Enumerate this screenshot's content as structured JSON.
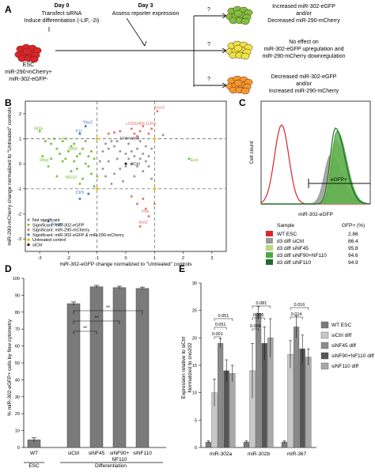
{
  "panel_labels": {
    "a": "A",
    "b": "B",
    "c": "C",
    "d": "D",
    "e": "E"
  },
  "panel_a": {
    "day0_title": "Day 0",
    "day0_line1": "Transfect siRNA",
    "day0_line2": "Induce differentiation (-LIF, -2i)",
    "day3_title": "Day 3",
    "day3_line1": "Assess reporter expression",
    "esc_line1": "ESC",
    "esc_line2": "miR-290-mCherry+",
    "esc_line3": "miR-302-eGFP-",
    "q": "?",
    "out1_line1": "Increased miR-302-eGFP",
    "out1_line2": "and/or",
    "out1_line3": "Decreased miR-290-mCherry",
    "out2_line1": "No effect on",
    "out2_line2": "miR-302-eGFP upregulation and",
    "out2_line3": "miR-290-mCherry downregulation",
    "out3_line1": "Decreased miR-302-eGFP",
    "out3_line2": "and/or",
    "out3_line3": "Increased miR-290-mCherry",
    "colors": {
      "esc": "#d9262b",
      "green": "#7cc242",
      "yellow": "#e8e64a",
      "orange": "#f29a2e"
    }
  },
  "chart_b": {
    "type": "scatter",
    "xlabel": "miR-302-eGFP change normalized to \"Untreated\" controls",
    "ylabel": "miR-290-mCherry change normalized to \"Untreated\" controls",
    "xticks": [
      "-3",
      "-2",
      "-1",
      "0",
      "1",
      "2",
      "3"
    ],
    "yticks": [
      "2",
      "1",
      "0",
      "-1",
      "-2",
      "-3"
    ],
    "xlim": [
      -3.5,
      3.5
    ],
    "ylim": [
      -3.5,
      2.5
    ],
    "dashed_x": [
      -1,
      1
    ],
    "dashed_y": [
      1,
      -1
    ],
    "legend": [
      {
        "label": "Not significant",
        "color": "#9a9a9a"
      },
      {
        "label": "Significant: miR-302-eGFP",
        "color": "#7cc242"
      },
      {
        "label": "Significant: miR-290-mCherry",
        "color": "#e07a70"
      },
      {
        "label": "Significant: miR-302-eGFP & miR-290-mCherry",
        "color": "#4a78c6"
      },
      {
        "label": "Untreated control",
        "color": "#e8c21a"
      },
      {
        "label": "siCtrl",
        "color": "#111111"
      }
    ],
    "point_labels": {
      "sox3": "Sox3",
      "ybx2": "Ybx2",
      "c030": "c030046E11Rik",
      "nf45": "Nf45",
      "fzr": "Fzr",
      "kit": "Kit",
      "nf90": "Nf90",
      "rbpj": "Rbpj",
      "nf110": "Nf110",
      "eed": "Eed",
      "untreated": "Untreated",
      "sictrl": "siCtrl",
      "ctr9": "Ctr9",
      "snupn": "Snupn",
      "pbx": "Pbx",
      "rnf2": "Rnf2"
    },
    "green_points": [
      [
        -3.0,
        1.3
      ],
      [
        -2.8,
        0.9
      ],
      [
        -2.6,
        0.8
      ],
      [
        -2.5,
        1.0
      ],
      [
        -2.4,
        0.6
      ],
      [
        -2.3,
        0.4
      ],
      [
        -2.2,
        0.9
      ],
      [
        -2.1,
        0.2
      ],
      [
        -2.0,
        0.5
      ],
      [
        -1.9,
        0.7
      ],
      [
        -1.8,
        0.1
      ],
      [
        -1.7,
        -0.2
      ],
      [
        -1.6,
        0.4
      ],
      [
        -1.5,
        0.6
      ],
      [
        -1.4,
        0.0
      ],
      [
        -1.3,
        0.3
      ],
      [
        -1.2,
        -0.4
      ],
      [
        -1.1,
        0.2
      ],
      [
        -2.7,
        -0.1
      ],
      [
        -2.4,
        -0.5
      ],
      [
        -2.2,
        0.1
      ],
      [
        -1.9,
        -0.3
      ],
      [
        -1.7,
        0.3
      ],
      [
        -1.5,
        -0.6
      ],
      [
        -1.3,
        -0.1
      ],
      [
        -1.2,
        0.5
      ],
      [
        -1.0,
        -0.5
      ],
      [
        -2.9,
        0.3
      ],
      [
        -2.6,
        0.2
      ],
      [
        -1.8,
        0.8
      ],
      [
        -1.6,
        -0.8
      ],
      [
        -1.4,
        0.9
      ],
      [
        -1.1,
        -0.9
      ],
      [
        2.2,
        0.2
      ]
    ],
    "red_points": [
      [
        1.1,
        2.1
      ],
      [
        0.6,
        1.5
      ],
      [
        0.5,
        1.3
      ],
      [
        0.8,
        1.2
      ],
      [
        0.2,
        1.4
      ],
      [
        0.4,
        1.1
      ],
      [
        -0.2,
        1.3
      ],
      [
        0.9,
        1.4
      ],
      [
        0.3,
        1.2
      ],
      [
        -0.4,
        1.25
      ],
      [
        1.3,
        1.15
      ],
      [
        -0.6,
        1.2
      ],
      [
        0.6,
        -1.4
      ],
      [
        0.4,
        -1.6
      ],
      [
        0.8,
        -2.1
      ],
      [
        0.7,
        -1.8
      ],
      [
        1.0,
        -1.6
      ],
      [
        0.2,
        -1.3
      ],
      [
        0.5,
        -2.5
      ]
    ],
    "blue_points": [
      [
        -1.4,
        1.5
      ],
      [
        -1.6,
        1.2
      ],
      [
        -1.3,
        -1.2
      ],
      [
        -1.6,
        -1.4
      ],
      [
        -2.7,
        -2.3
      ]
    ],
    "gray_points": [
      [
        -0.8,
        0.5
      ],
      [
        -0.6,
        0.1
      ],
      [
        -0.4,
        0.7
      ],
      [
        -0.2,
        -0.2
      ],
      [
        0.0,
        0.4
      ],
      [
        0.2,
        0.0
      ],
      [
        0.4,
        0.6
      ],
      [
        0.6,
        -0.3
      ],
      [
        0.8,
        0.3
      ],
      [
        -0.7,
        -0.5
      ],
      [
        -0.5,
        0.9
      ],
      [
        -0.3,
        0.2
      ],
      [
        -0.1,
        -0.7
      ],
      [
        0.1,
        0.8
      ],
      [
        0.3,
        -0.5
      ],
      [
        0.5,
        0.2
      ],
      [
        0.7,
        0.7
      ],
      [
        0.9,
        -0.6
      ],
      [
        -0.9,
        0.1
      ],
      [
        -0.6,
        0.6
      ],
      [
        -0.2,
        0.5
      ],
      [
        0.2,
        0.5
      ],
      [
        0.6,
        0.4
      ],
      [
        -0.4,
        -0.4
      ],
      [
        0.0,
        -0.1
      ],
      [
        0.4,
        -0.1
      ],
      [
        0.8,
        -0.1
      ],
      [
        -0.8,
        -0.2
      ],
      [
        0.1,
        0.2
      ],
      [
        -0.3,
        0.9
      ],
      [
        0.5,
        0.9
      ],
      [
        -0.5,
        -0.8
      ],
      [
        0.3,
        0.3
      ],
      [
        0.7,
        0.1
      ],
      [
        -0.7,
        0.8
      ],
      [
        0.9,
        0.6
      ]
    ],
    "yellow_points": [
      [
        -1.0,
        -1.0
      ],
      [
        1.0,
        1.0
      ],
      [
        -1.0,
        1.0
      ],
      [
        1.0,
        -1.0
      ]
    ],
    "black_points": [
      [
        0.0,
        0.0
      ]
    ]
  },
  "chart_c": {
    "type": "histogram",
    "ylabel": "Cell count",
    "xlabel": "miR-302-eGFP",
    "gate_label": "eGFP+",
    "table_header_sample": "Sample",
    "table_header_value": "GFP+ (%)",
    "rows": [
      {
        "sample": "WT ESC",
        "value": "2.86",
        "color": "#d9262b"
      },
      {
        "sample": "d3 diff siCtrl",
        "value": "86.4",
        "color": "#999999"
      },
      {
        "sample": "d3 diff siNF45",
        "value": "95.8",
        "color": "#b6d77e"
      },
      {
        "sample": "d3 diff siNF90+NF110",
        "value": "94.6",
        "color": "#4ea844"
      },
      {
        "sample": "d3 diff siNF110",
        "value": "94.9",
        "color": "#1e6b30"
      }
    ]
  },
  "chart_d": {
    "type": "bar",
    "ylabel": "% miR-302-eGFP+ cells by flow cytometry",
    "ylim": [
      0,
      100
    ],
    "yticks": [
      "0",
      "10",
      "20",
      "30",
      "40",
      "50",
      "60",
      "70",
      "80",
      "90",
      "100"
    ],
    "categories": [
      "WT",
      "siCtrl",
      "siNF45",
      "siNF90+",
      "siNF110"
    ],
    "category_line2": [
      "",
      "",
      "",
      "NF110",
      ""
    ],
    "values": [
      4.5,
      85,
      95,
      94.5,
      94
    ],
    "errors": [
      1.2,
      1.0,
      0.8,
      0.8,
      0.8
    ],
    "group_esc": "ESC",
    "group_diff": "Differentiation",
    "sig": [
      "**",
      "**",
      "**",
      "**"
    ]
  },
  "chart_e": {
    "type": "bar",
    "ylabel_line1": "Expression relative to siCtrl",
    "ylabel_line2": "Normalized to sno202",
    "ylim": [
      0,
      30
    ],
    "yticks": [
      "0",
      "5",
      "10",
      "15",
      "20",
      "25",
      "30"
    ],
    "categories": [
      "miR-302a",
      "miR-302b",
      "miR-367"
    ],
    "series": [
      {
        "name": "WT ESC",
        "color": "#7a7a7a",
        "values": [
          1,
          1,
          1
        ],
        "errors": [
          0.2,
          0.2,
          0.2
        ]
      },
      {
        "name": "siCtrl diff",
        "color": "#c8c8c8",
        "values": [
          10,
          14,
          17
        ],
        "errors": [
          2.5,
          5.0,
          2.5
        ]
      },
      {
        "name": "siNF45 diff",
        "color": "#8a8a8a",
        "values": [
          19,
          24.5,
          22
        ],
        "errors": [
          0.8,
          1.2,
          2.0
        ]
      },
      {
        "name": "siNF90+NF110 diff",
        "color": "#555555",
        "values": [
          14,
          19,
          18
        ],
        "errors": [
          2.0,
          3.0,
          2.5
        ]
      },
      {
        "name": "siNF110 diff",
        "color": "#a8a8a8",
        "values": [
          13.5,
          20,
          16.5
        ],
        "errors": [
          1.5,
          3.5,
          1.5
        ]
      }
    ],
    "sig_values": [
      "0.001",
      "0.051",
      "0.051",
      "0.006",
      "0.105",
      "0.081",
      "0.014",
      "0.016"
    ]
  }
}
